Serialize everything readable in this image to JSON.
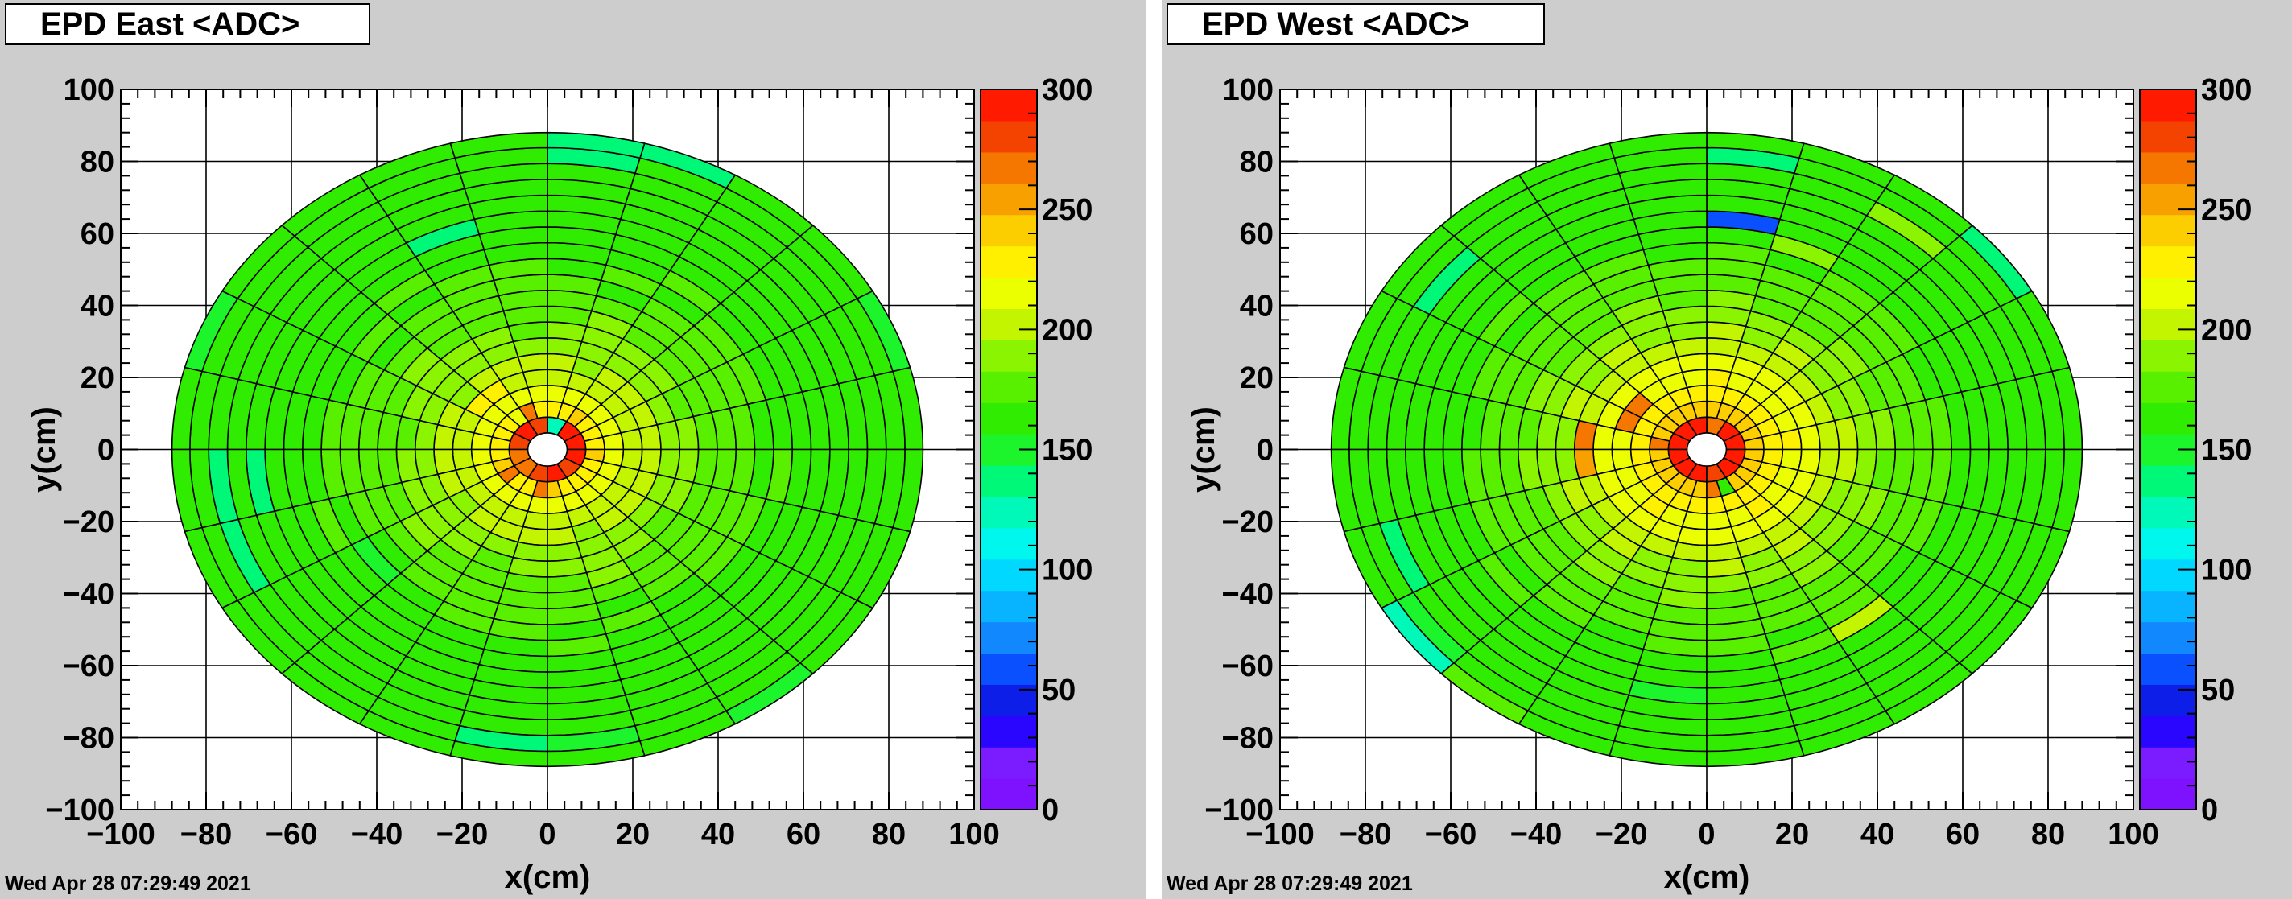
{
  "timestamp": "Wed Apr 28 07:29:49 2021",
  "chart_data": [
    {
      "type": "heatmap",
      "title": "EPD East <ADC>",
      "xlabel": "x(cm)",
      "ylabel": "y(cm)",
      "xlim": [
        -100,
        100
      ],
      "ylim": [
        -100,
        100
      ],
      "xticks": [
        -100,
        -80,
        -60,
        -40,
        -20,
        0,
        20,
        40,
        60,
        80,
        100
      ],
      "yticks": [
        -100,
        -80,
        -60,
        -40,
        -20,
        0,
        20,
        40,
        60,
        80,
        100
      ],
      "grid": true,
      "zlim": [
        0,
        300
      ],
      "zticks": [
        0,
        50,
        100,
        150,
        200,
        250,
        300
      ],
      "ring_edges_cm": [
        4.6,
        9.0,
        13.4,
        17.8,
        22.2,
        26.6,
        31.0,
        35.4,
        39.8,
        44.2,
        48.6,
        53.0,
        57.4,
        61.8,
        66.2,
        70.6,
        75.0,
        79.4,
        83.8,
        88.0
      ],
      "tiles_per_ring": [
        12,
        24,
        24,
        24,
        24,
        24,
        24,
        24,
        24,
        24,
        24,
        24,
        24,
        24,
        24,
        24,
        24,
        24,
        24
      ],
      "ring_mean_adc": [
        288,
        232,
        215,
        205,
        198,
        192,
        185,
        180,
        176,
        172,
        170,
        168,
        166,
        165,
        164,
        163,
        163,
        162,
        160
      ],
      "tile_overrides": [
        {
          "ring": 0,
          "tile": 0,
          "value": 296
        },
        {
          "ring": 0,
          "tile": 1,
          "value": 292
        },
        {
          "ring": 0,
          "tile": 2,
          "value": 130
        },
        {
          "ring": 0,
          "tile": 6,
          "value": 265
        },
        {
          "ring": 0,
          "tile": 7,
          "value": 262
        },
        {
          "ring": 0,
          "tile": 11,
          "value": 296
        },
        {
          "ring": 1,
          "tile": 7,
          "value": 262
        },
        {
          "ring": 1,
          "tile": 8,
          "value": 215
        },
        {
          "ring": 1,
          "tile": 14,
          "value": 262
        },
        {
          "ring": 1,
          "tile": 17,
          "value": 270
        },
        {
          "ring": 3,
          "tile": 8,
          "value": 228
        },
        {
          "ring": 3,
          "tile": 9,
          "value": 222
        },
        {
          "ring": 10,
          "tile": 14,
          "value": 150
        },
        {
          "ring": 13,
          "tile": 7,
          "value": 138
        },
        {
          "ring": 14,
          "tile": 12,
          "value": 140
        },
        {
          "ring": 16,
          "tile": 12,
          "value": 142
        },
        {
          "ring": 16,
          "tile": 13,
          "value": 140
        },
        {
          "ring": 17,
          "tile": 5,
          "value": 138
        },
        {
          "ring": 17,
          "tile": 17,
          "value": 142
        },
        {
          "ring": 17,
          "tile": 18,
          "value": 145
        },
        {
          "ring": 18,
          "tile": 1,
          "value": 150
        },
        {
          "ring": 18,
          "tile": 4,
          "value": 132
        },
        {
          "ring": 18,
          "tile": 5,
          "value": 140
        },
        {
          "ring": 18,
          "tile": 10,
          "value": 145
        },
        {
          "ring": 18,
          "tile": 20,
          "value": 150
        }
      ]
    },
    {
      "type": "heatmap",
      "title": "EPD West <ADC>",
      "xlabel": "x(cm)",
      "ylabel": "y(cm)",
      "xlim": [
        -100,
        100
      ],
      "ylim": [
        -100,
        100
      ],
      "xticks": [
        -100,
        -80,
        -60,
        -40,
        -20,
        0,
        20,
        40,
        60,
        80,
        100
      ],
      "yticks": [
        -100,
        -80,
        -60,
        -40,
        -20,
        0,
        20,
        40,
        60,
        80,
        100
      ],
      "grid": true,
      "zlim": [
        0,
        300
      ],
      "zticks": [
        0,
        50,
        100,
        150,
        200,
        250,
        300
      ],
      "ring_edges_cm": [
        4.6,
        9.0,
        13.4,
        17.8,
        22.2,
        26.6,
        31.0,
        35.4,
        39.8,
        44.2,
        48.6,
        53.0,
        57.4,
        61.8,
        66.2,
        70.6,
        75.0,
        79.4,
        83.8,
        88.0
      ],
      "tiles_per_ring": [
        12,
        24,
        24,
        24,
        24,
        24,
        24,
        24,
        24,
        24,
        24,
        24,
        24,
        24,
        24,
        24,
        24,
        24,
        24
      ],
      "ring_mean_adc": [
        290,
        240,
        228,
        220,
        212,
        205,
        195,
        188,
        182,
        178,
        174,
        170,
        167,
        165,
        164,
        163,
        162,
        161,
        160
      ],
      "tile_overrides": [
        {
          "ring": 0,
          "tile": 0,
          "value": 290
        },
        {
          "ring": 0,
          "tile": 2,
          "value": 265
        },
        {
          "ring": 0,
          "tile": 9,
          "value": 275
        },
        {
          "ring": 1,
          "tile": 11,
          "value": 262
        },
        {
          "ring": 1,
          "tile": 18,
          "value": 270
        },
        {
          "ring": 1,
          "tile": 19,
          "value": 160
        },
        {
          "ring": 3,
          "tile": 9,
          "value": 262
        },
        {
          "ring": 3,
          "tile": 10,
          "value": 268
        },
        {
          "ring": 5,
          "tile": 11,
          "value": 262
        },
        {
          "ring": 5,
          "tile": 12,
          "value": 258
        },
        {
          "ring": 12,
          "tile": 4,
          "value": 195
        },
        {
          "ring": 12,
          "tile": 20,
          "value": 205
        },
        {
          "ring": 13,
          "tile": 5,
          "value": 60
        },
        {
          "ring": 14,
          "tile": 17,
          "value": 150
        },
        {
          "ring": 16,
          "tile": 3,
          "value": 190
        },
        {
          "ring": 16,
          "tile": 9,
          "value": 140
        },
        {
          "ring": 16,
          "tile": 13,
          "value": 142
        },
        {
          "ring": 17,
          "tile": 5,
          "value": 140
        },
        {
          "ring": 17,
          "tile": 14,
          "value": 145
        },
        {
          "ring": 18,
          "tile": 2,
          "value": 140
        },
        {
          "ring": 18,
          "tile": 14,
          "value": 130
        },
        {
          "ring": 18,
          "tile": 15,
          "value": 180
        }
      ]
    }
  ]
}
